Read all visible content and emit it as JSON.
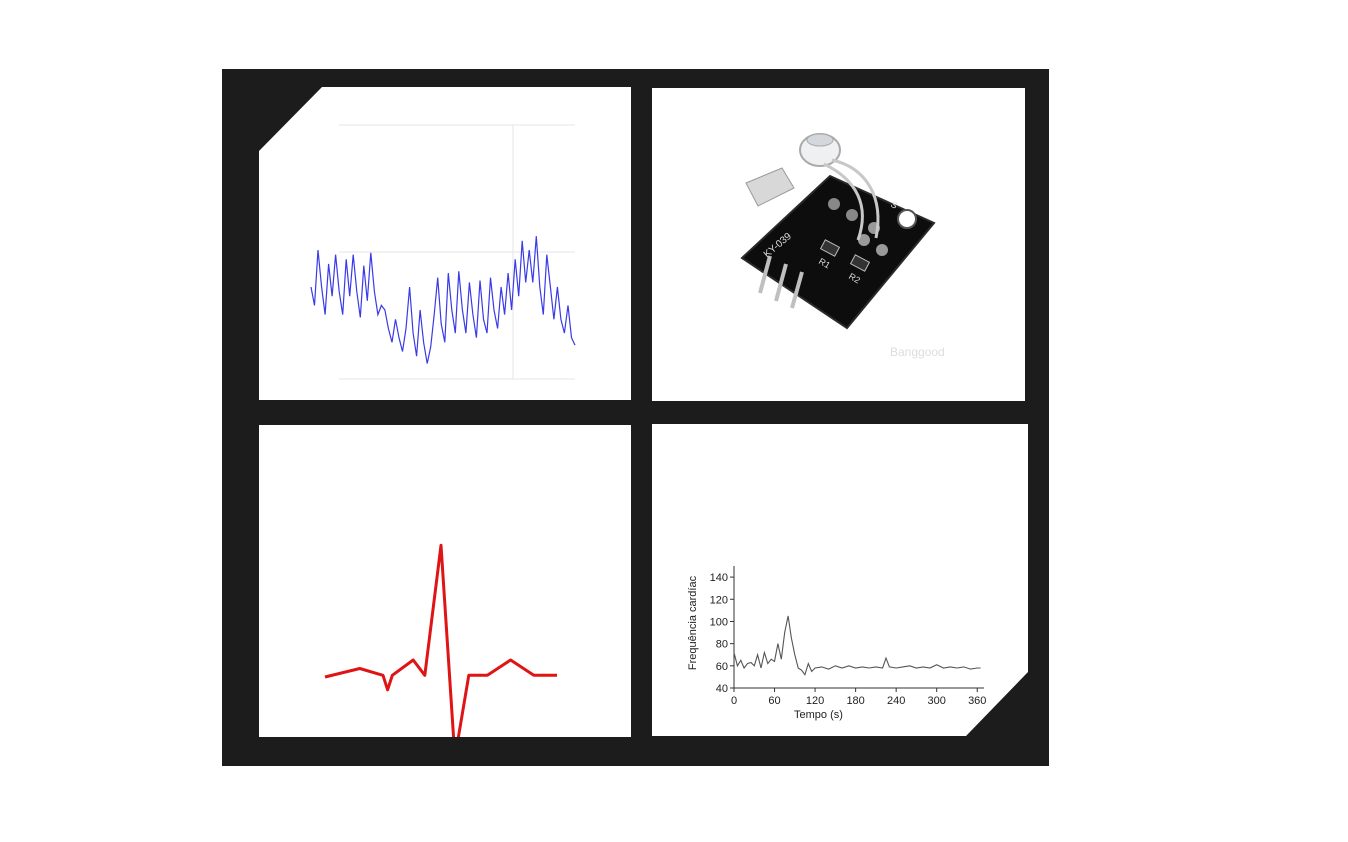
{
  "chart_data": [
    {
      "type": "line",
      "color": "#3a3ae8",
      "grid": true,
      "values": [
        0.55,
        0.35,
        0.95,
        0.55,
        0.25,
        0.8,
        0.45,
        0.9,
        0.5,
        0.25,
        0.85,
        0.45,
        0.9,
        0.5,
        0.22,
        0.78,
        0.4,
        0.92,
        0.5,
        0.25,
        0.35,
        0.3,
        0.1,
        -0.05,
        0.2,
        0.0,
        -0.15,
        0.1,
        0.55,
        0.05,
        -0.2,
        0.3,
        -0.05,
        -0.28,
        -0.1,
        0.25,
        0.65,
        0.15,
        -0.05,
        0.7,
        0.3,
        0.05,
        0.72,
        0.3,
        0.05,
        0.6,
        0.25,
        0.0,
        0.62,
        0.2,
        0.05,
        0.65,
        0.3,
        0.1,
        0.55,
        0.25,
        0.7,
        0.3,
        0.85,
        0.45,
        1.05,
        0.6,
        0.95,
        0.6,
        1.1,
        0.55,
        0.25,
        0.9,
        0.55,
        0.2,
        0.55,
        0.2,
        0.05,
        0.35,
        0.0,
        -0.08
      ]
    },
    {
      "type": "image",
      "name": "sensor-module",
      "board_labels": [
        "KY-039",
        "S"
      ],
      "component_labels": [
        "R1",
        "R2"
      ],
      "watermark": "Banggood"
    },
    {
      "type": "line",
      "color": "#e01414",
      "values": [
        [
          0,
          0
        ],
        [
          1.5,
          0.1
        ],
        [
          2.5,
          0.02
        ],
        [
          2.7,
          -0.15
        ],
        [
          2.9,
          0.02
        ],
        [
          3.8,
          0.2
        ],
        [
          4.3,
          0.02
        ],
        [
          5.0,
          1.55
        ],
        [
          5.6,
          -0.95
        ],
        [
          6.2,
          0.02
        ],
        [
          7.0,
          0.02
        ],
        [
          8.0,
          0.2
        ],
        [
          9.0,
          0.02
        ],
        [
          10.0,
          0.02
        ]
      ]
    },
    {
      "type": "line",
      "color": "#555555",
      "xlabel": "Tempo (s)",
      "ylabel": "Frequência cardíac",
      "xlim": [
        0,
        370
      ],
      "ylim": [
        40,
        150
      ],
      "xticks": [
        0,
        60,
        120,
        180,
        240,
        300,
        360
      ],
      "yticks": [
        40,
        60,
        80,
        100,
        120,
        140
      ],
      "x": [
        0,
        5,
        10,
        15,
        20,
        25,
        30,
        35,
        40,
        45,
        50,
        55,
        60,
        65,
        70,
        75,
        80,
        85,
        90,
        95,
        100,
        105,
        110,
        115,
        120,
        130,
        140,
        150,
        160,
        170,
        180,
        190,
        200,
        210,
        220,
        225,
        230,
        240,
        250,
        260,
        270,
        280,
        290,
        300,
        310,
        320,
        330,
        340,
        350,
        360,
        365
      ],
      "y": [
        72,
        60,
        65,
        58,
        62,
        63,
        60,
        70,
        58,
        72,
        62,
        66,
        64,
        80,
        66,
        90,
        105,
        85,
        70,
        58,
        56,
        52,
        62,
        55,
        58,
        59,
        57,
        60,
        58,
        60,
        58,
        59,
        58,
        59,
        58,
        67,
        59,
        58,
        59,
        60,
        58,
        59,
        58,
        61,
        58,
        59,
        58,
        59,
        57,
        58,
        58
      ]
    }
  ]
}
